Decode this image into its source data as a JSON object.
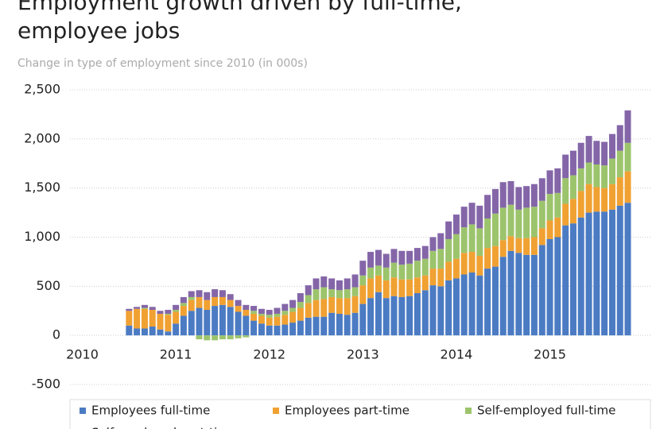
{
  "chart_data": {
    "type": "stacked_bar",
    "title": "Employment growth driven by full-time,",
    "title_line2": "employee jobs",
    "subtitle": "Change in type of employment since 2010 (in 000s)",
    "x": [
      2010.5,
      2010.583,
      2010.667,
      2010.75,
      2010.833,
      2010.917,
      2011,
      2011.083,
      2011.167,
      2011.25,
      2011.333,
      2011.417,
      2011.5,
      2011.583,
      2011.667,
      2011.75,
      2011.833,
      2011.917,
      2012,
      2012.083,
      2012.167,
      2012.25,
      2012.333,
      2012.417,
      2012.5,
      2012.583,
      2012.667,
      2012.75,
      2012.833,
      2012.917,
      2013,
      2013.083,
      2013.167,
      2013.25,
      2013.333,
      2013.417,
      2013.5,
      2013.583,
      2013.667,
      2013.75,
      2013.833,
      2013.917,
      2014,
      2014.083,
      2014.167,
      2014.25,
      2014.333,
      2014.417,
      2014.5,
      2014.583,
      2014.667,
      2014.75,
      2014.833,
      2014.917,
      2015,
      2015.083,
      2015.167,
      2015.25,
      2015.333,
      2015.417,
      2015.5,
      2015.583,
      2015.667,
      2015.75,
      2015.833
    ],
    "series": [
      {
        "name": "Employees full-time",
        "color": "#4b7bc3",
        "values": [
          100,
          70,
          70,
          90,
          60,
          40,
          120,
          200,
          250,
          280,
          260,
          300,
          310,
          290,
          240,
          200,
          150,
          120,
          100,
          100,
          110,
          130,
          150,
          180,
          190,
          190,
          230,
          220,
          210,
          230,
          320,
          380,
          440,
          380,
          400,
          390,
          400,
          430,
          460,
          510,
          500,
          560,
          580,
          620,
          640,
          610,
          680,
          700,
          800,
          860,
          840,
          820,
          820,
          920,
          980,
          1000,
          1120,
          1140,
          1200,
          1250,
          1260,
          1260,
          1280,
          1320,
          1350
        ]
      },
      {
        "name": "Employees part-time",
        "color": "#f0a132",
        "values": [
          150,
          200,
          200,
          170,
          160,
          170,
          120,
          100,
          110,
          110,
          100,
          90,
          80,
          70,
          60,
          60,
          70,
          80,
          80,
          90,
          100,
          110,
          130,
          150,
          170,
          180,
          160,
          160,
          170,
          170,
          190,
          200,
          170,
          180,
          190,
          180,
          170,
          160,
          150,
          170,
          180,
          190,
          200,
          220,
          210,
          200,
          210,
          210,
          170,
          150,
          150,
          170,
          180,
          170,
          190,
          200,
          220,
          250,
          270,
          290,
          250,
          240,
          260,
          290,
          320
        ]
      },
      {
        "name": "Self-employed full-time",
        "color": "#9cc46c",
        "values": [
          0,
          0,
          10,
          0,
          0,
          10,
          20,
          30,
          30,
          -40,
          -50,
          -50,
          -40,
          -40,
          -30,
          -20,
          30,
          20,
          30,
          30,
          40,
          40,
          60,
          80,
          110,
          120,
          80,
          80,
          90,
          90,
          100,
          110,
          100,
          130,
          150,
          150,
          160,
          170,
          170,
          180,
          200,
          230,
          250,
          260,
          280,
          280,
          300,
          330,
          330,
          320,
          290,
          310,
          310,
          280,
          270,
          250,
          260,
          240,
          230,
          220,
          230,
          230,
          260,
          270,
          290
        ]
      },
      {
        "name": "Self-employed part-time",
        "color": "#8466a8",
        "values": [
          20,
          20,
          30,
          30,
          30,
          40,
          50,
          60,
          60,
          70,
          80,
          80,
          70,
          60,
          60,
          50,
          50,
          50,
          50,
          60,
          70,
          80,
          90,
          100,
          110,
          110,
          110,
          100,
          110,
          130,
          150,
          160,
          160,
          140,
          140,
          140,
          130,
          130,
          130,
          140,
          160,
          180,
          200,
          210,
          220,
          230,
          240,
          250,
          260,
          240,
          230,
          220,
          230,
          230,
          240,
          250,
          240,
          250,
          260,
          270,
          240,
          240,
          250,
          260,
          330
        ]
      }
    ],
    "xlim": [
      2009.8,
      2016.05
    ],
    "xticks": [
      2010,
      2011,
      2012,
      2013,
      2014,
      2015
    ],
    "ylim": [
      -500,
      2500
    ],
    "yticks": [
      {
        "value": -500,
        "label": "-500"
      },
      0,
      500,
      {
        "value": 1000,
        "label": "1,000"
      },
      {
        "value": 1500,
        "label": "1,500"
      },
      {
        "value": 2000,
        "label": "2,000"
      },
      {
        "value": 2500,
        "label": "2,500"
      }
    ],
    "grid": true,
    "legend": "bottom"
  }
}
